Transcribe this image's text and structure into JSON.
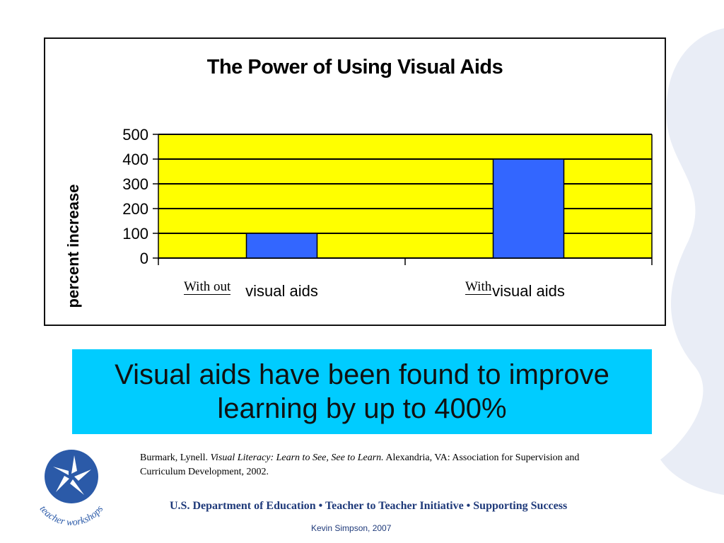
{
  "slide": {
    "callout_text": "Visual aids have been found to improve learning by up to 400%",
    "citation": {
      "author": "Burmark, Lynell.",
      "book_title": "Visual Literacy: Learn to See, See to Learn.",
      "publisher": "Alexandria, VA: Association for Supervision and Curriculum Development, 2002."
    },
    "logo_text": "teacher workshops",
    "footer": "U.S. Department of Education • Teacher to Teacher Initiative • Supporting Success",
    "author_credit": "Kevin Simpson, 2007",
    "overlay_labels": {
      "without": "With out",
      "with": "With"
    }
  },
  "colors": {
    "plot_background": "#ffff00",
    "bar_fill": "#3366ff",
    "callout_background": "#00ccff",
    "footer_text": "#1f3a7a",
    "logo_blue": "#2b5aa8"
  },
  "chart_data": {
    "type": "bar",
    "title": "The Power of Using Visual Aids",
    "ylabel": "percent increase",
    "xlabel": "",
    "categories": [
      "visual aids",
      "visual aids"
    ],
    "values": [
      100,
      400
    ],
    "ylim": [
      0,
      500
    ],
    "yticks": [
      0,
      100,
      200,
      300,
      400,
      500
    ],
    "grid": true,
    "legend": "none"
  }
}
